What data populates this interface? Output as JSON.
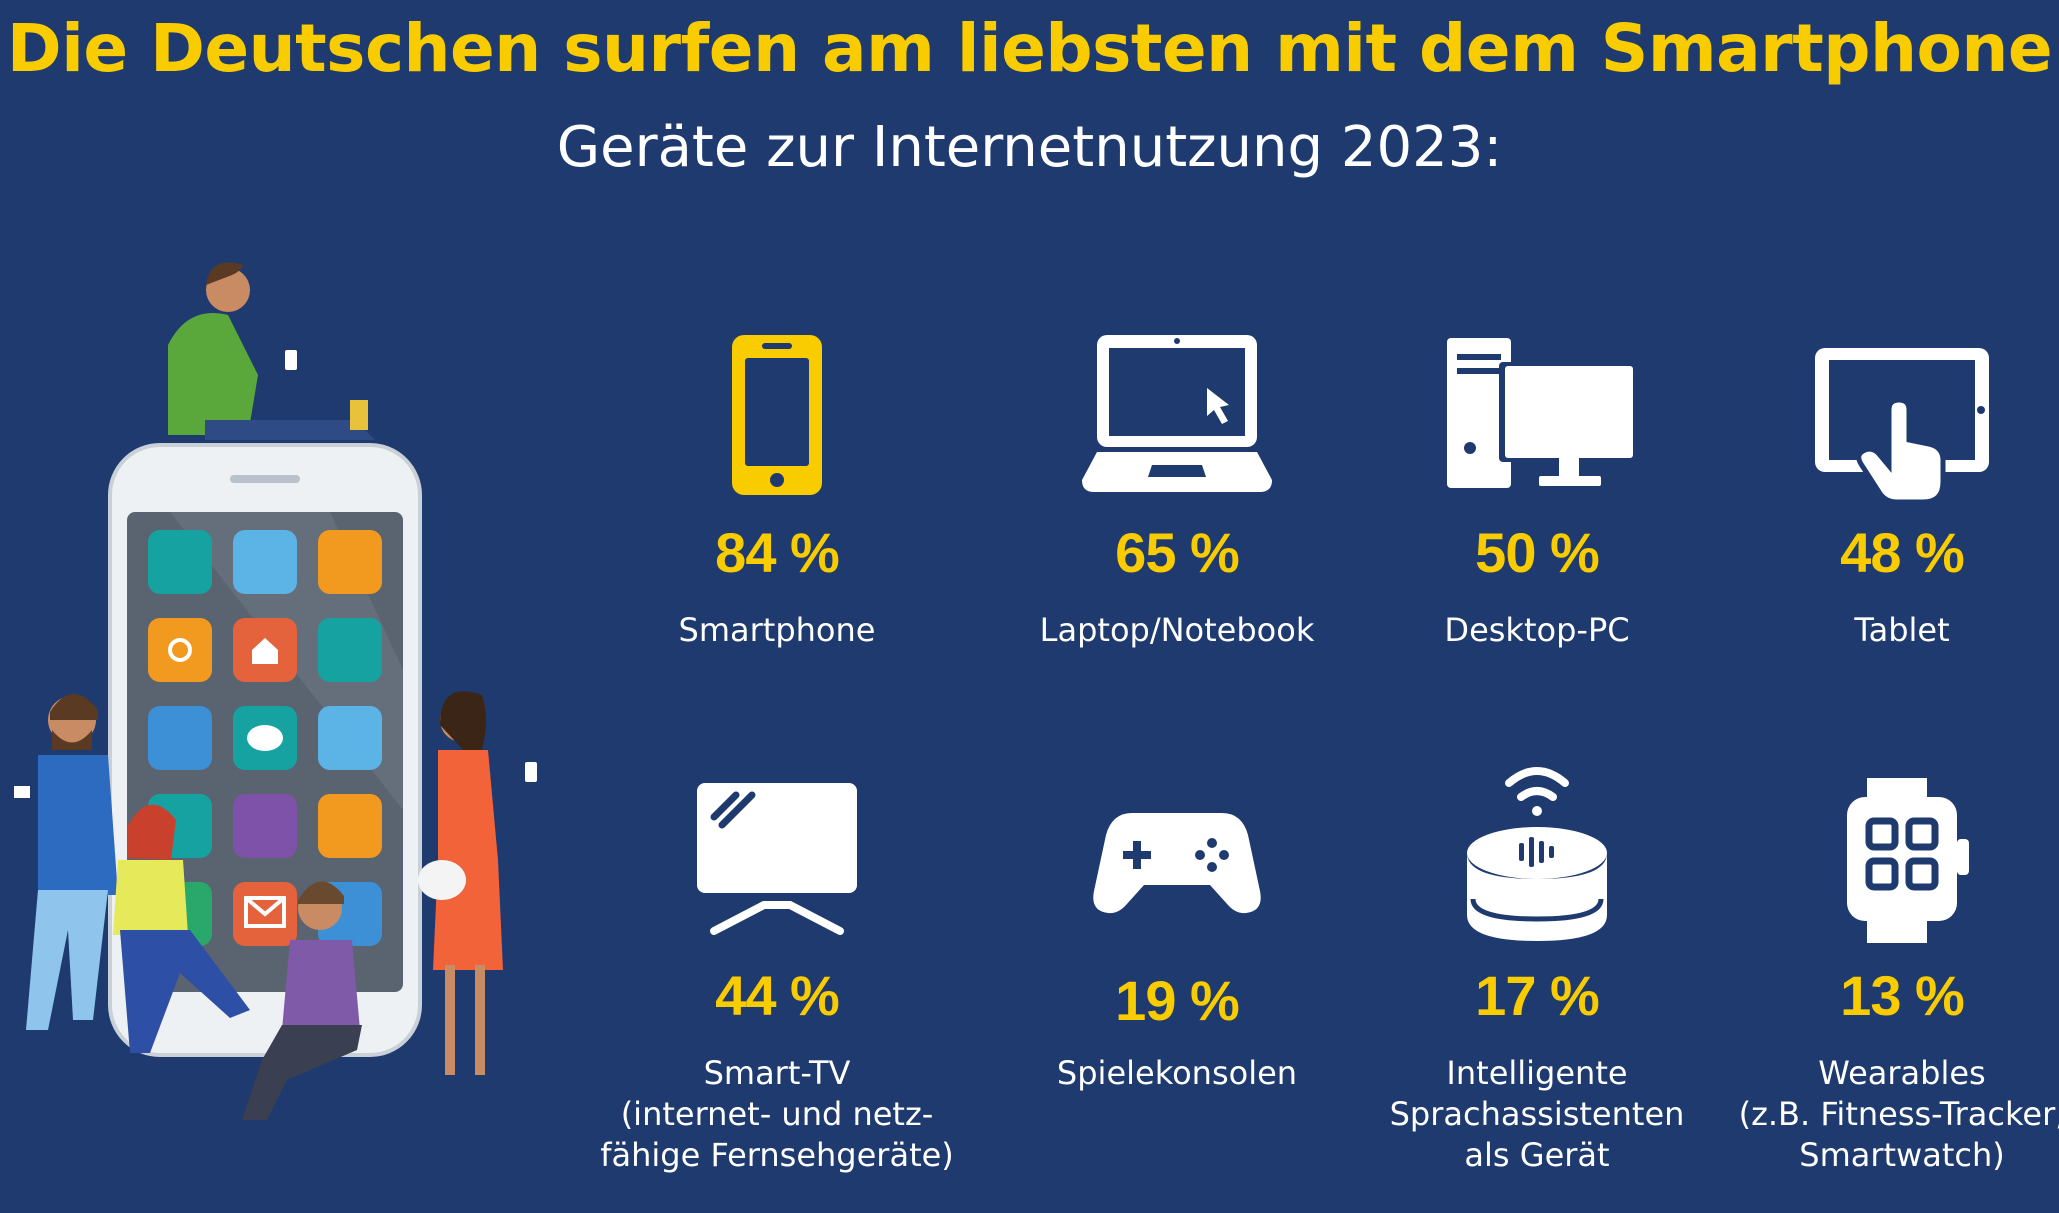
{
  "header": {
    "title": "Die Deutschen surfen am liebsten mit dem Smartphone",
    "subtitle": "Geräte zur Internetnutzung 2023:"
  },
  "colors": {
    "background": "#1e3a6e",
    "accent": "#f9cc00",
    "text": "#ffffff"
  },
  "chart_data": {
    "type": "bar",
    "title": "Die Deutschen surfen am liebsten mit dem Smartphone",
    "subtitle": "Geräte zur Internetnutzung 2023:",
    "unit": "%",
    "categories": [
      "Smartphone",
      "Laptop/Notebook",
      "Desktop-PC",
      "Tablet",
      "Smart-TV",
      "Spielekonsolen",
      "Intelligente Sprachassistenten als Gerät",
      "Wearables"
    ],
    "values": [
      84,
      65,
      50,
      48,
      44,
      19,
      17,
      13
    ]
  },
  "items": [
    {
      "icon": "smartphone-icon",
      "percent": "84 %",
      "label": [
        "Smartphone"
      ]
    },
    {
      "icon": "laptop-icon",
      "percent": "65 %",
      "label": [
        "Laptop/Notebook"
      ]
    },
    {
      "icon": "desktop-pc-icon",
      "percent": "50 %",
      "label": [
        "Desktop-PC"
      ]
    },
    {
      "icon": "tablet-icon",
      "percent": "48 %",
      "label": [
        "Tablet"
      ]
    },
    {
      "icon": "smart-tv-icon",
      "percent": "44 %",
      "label": [
        "Smart-TV",
        "(internet- und netz-",
        "fähige Fernsehgeräte)"
      ]
    },
    {
      "icon": "game-controller-icon",
      "percent": "19 %",
      "label": [
        "Spielekonsolen"
      ]
    },
    {
      "icon": "smart-speaker-icon",
      "percent": "17 %",
      "label": [
        "Intelligente",
        "Sprachassistenten",
        "als Gerät"
      ]
    },
    {
      "icon": "smartwatch-icon",
      "percent": "13 %",
      "label": [
        "Wearables",
        "(z.B. Fitness-Tracker,",
        "Smartwatch)"
      ]
    }
  ]
}
